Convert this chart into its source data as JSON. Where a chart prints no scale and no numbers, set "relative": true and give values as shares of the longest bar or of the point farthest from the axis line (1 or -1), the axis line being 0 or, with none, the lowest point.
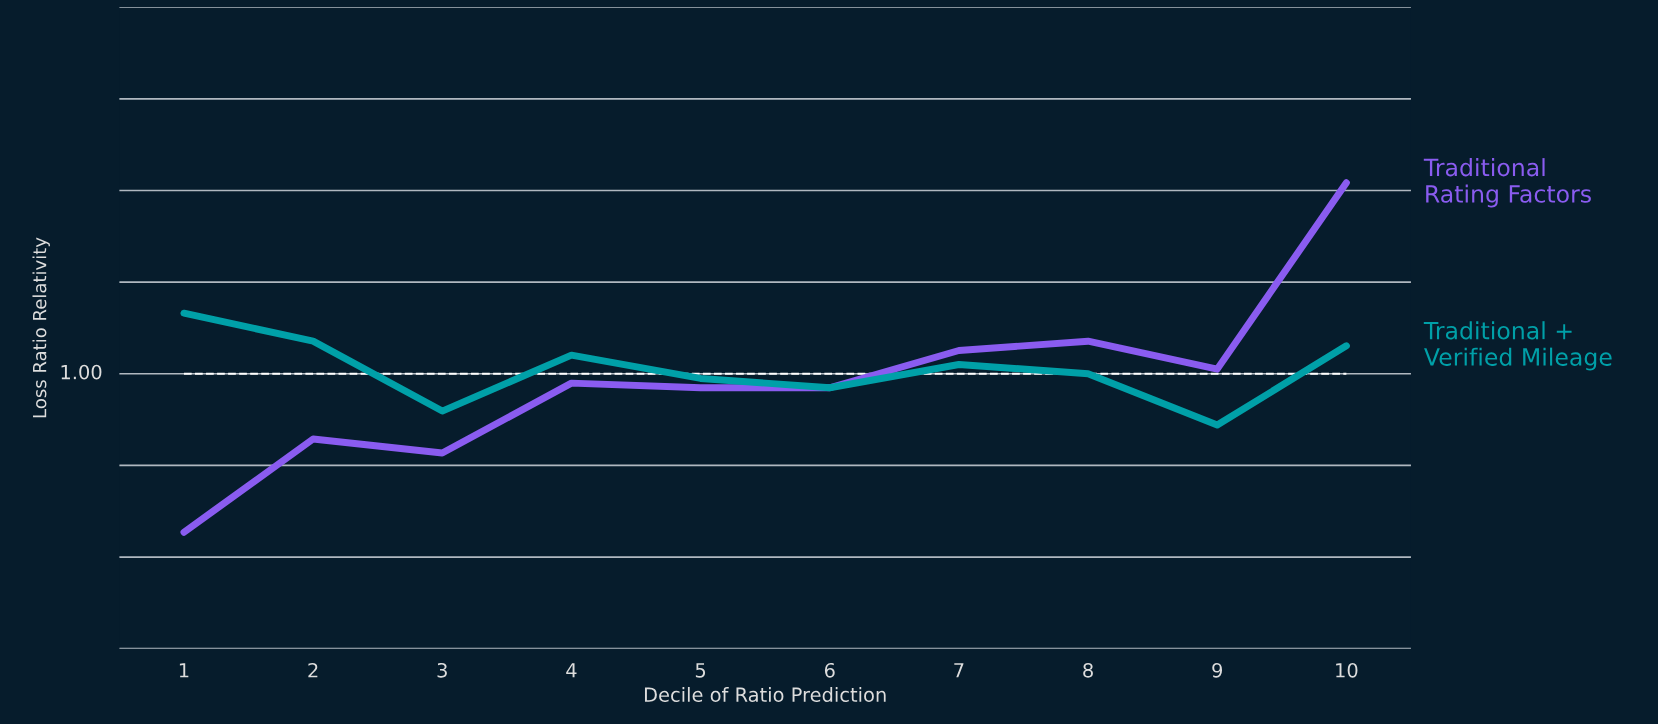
{
  "chart_data": {
    "type": "line",
    "xlabel": "Decile of Ratio Prediction",
    "ylabel": "Loss Ratio Relativity",
    "relative": true,
    "categories": [
      "1",
      "2",
      "3",
      "4",
      "5",
      "6",
      "7",
      "8",
      "9",
      "10"
    ],
    "series": [
      {
        "name": "Traditional\nRating Factors",
        "color": "#8a5cf0",
        "values": [
          0.25,
          0.45,
          0.42,
          0.57,
          0.56,
          0.56,
          0.64,
          0.66,
          0.6,
          1.0
        ]
      },
      {
        "name": "Traditional +\nVerified Mileage",
        "color": "#00a0a8",
        "values": [
          0.72,
          0.66,
          0.51,
          0.63,
          0.58,
          0.56,
          0.61,
          0.59,
          0.48,
          0.65
        ]
      }
    ],
    "ref_lines": [
      {
        "axis": "y",
        "value": 0.59,
        "color": "#ffffff",
        "line_style": "dashed"
      }
    ],
    "annotations": [
      "1.00"
    ],
    "grid": "y",
    "marker": "none",
    "line_style": "solid"
  }
}
